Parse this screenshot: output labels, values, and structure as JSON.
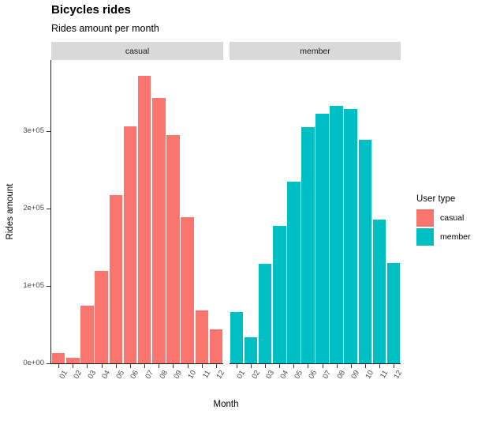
{
  "title": "Bicycles rides",
  "subtitle": "Rides amount per month",
  "axes": {
    "x_label": "Month",
    "y_label": "Rides amount",
    "y_tick_labels": [
      "0e+00",
      "1e+05",
      "2e+05",
      "3e+05"
    ]
  },
  "legend": {
    "title": "User type",
    "items": [
      {
        "label": "casual",
        "color": "#F8766D"
      },
      {
        "label": "member",
        "color": "#00BFC4"
      }
    ]
  },
  "chart_data": {
    "type": "bar",
    "title": "Bicycles rides",
    "subtitle": "Rides amount per month",
    "xlabel": "Month",
    "ylabel": "Rides amount",
    "categories": [
      "01",
      "02",
      "03",
      "04",
      "05",
      "06",
      "07",
      "08",
      "09",
      "10",
      "11",
      "12"
    ],
    "facets": [
      {
        "name": "casual",
        "color": "#F8766D",
        "values": [
          13000,
          7000,
          75000,
          119000,
          217000,
          306000,
          372000,
          343000,
          295000,
          189000,
          68000,
          44000
        ]
      },
      {
        "name": "member",
        "color": "#00BFC4",
        "values": [
          66000,
          34000,
          129000,
          178000,
          235000,
          305000,
          323000,
          333000,
          329000,
          289000,
          186000,
          130000
        ]
      }
    ],
    "y_tick_values": [
      0,
      100000,
      200000,
      300000
    ],
    "ylim": [
      0,
      392000
    ],
    "grid": false,
    "panel_background": "#ffffff",
    "strip_background": "#d9d9d9",
    "legend_position": "right",
    "x_tick_label_angle": 60
  }
}
